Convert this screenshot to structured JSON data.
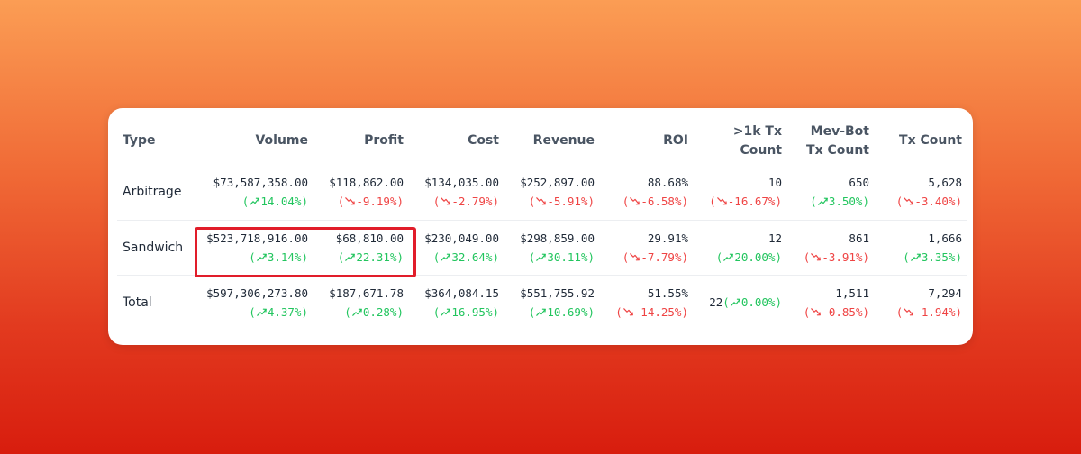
{
  "colors": {
    "up": "#22c55e",
    "down": "#ef4444",
    "highlight": "#e11d2a"
  },
  "headers": {
    "type": "Type",
    "volume": "Volume",
    "profit": "Profit",
    "cost": "Cost",
    "revenue": "Revenue",
    "roi": "ROI",
    "tx1k_line1": ">1k Tx",
    "tx1k_line2": "Count",
    "mevbot_line1": "Mev-Bot",
    "mevbot_line2": "Tx Count",
    "txcount": "Tx Count"
  },
  "rows": [
    {
      "type": "Arbitrage",
      "cells": [
        {
          "key": "volume",
          "value": "$73,587,358.00",
          "change": "14.04%",
          "dir": "up"
        },
        {
          "key": "profit",
          "value": "$118,862.00",
          "change": "-9.19%",
          "dir": "down"
        },
        {
          "key": "cost",
          "value": "$134,035.00",
          "change": "-2.79%",
          "dir": "down"
        },
        {
          "key": "revenue",
          "value": "$252,897.00",
          "change": "-5.91%",
          "dir": "down"
        },
        {
          "key": "roi",
          "value": "88.68%",
          "change": "-6.58%",
          "dir": "down"
        },
        {
          "key": "tx1k",
          "value": "10",
          "change": "-16.67%",
          "dir": "down"
        },
        {
          "key": "mevbot",
          "value": "650",
          "change": "3.50%",
          "dir": "up"
        },
        {
          "key": "txcount",
          "value": "5,628",
          "change": "-3.40%",
          "dir": "down"
        }
      ]
    },
    {
      "type": "Sandwich",
      "cells": [
        {
          "key": "volume",
          "value": "$523,718,916.00",
          "change": "3.14%",
          "dir": "up"
        },
        {
          "key": "profit",
          "value": "$68,810.00",
          "change": "22.31%",
          "dir": "up"
        },
        {
          "key": "cost",
          "value": "$230,049.00",
          "change": "32.64%",
          "dir": "up"
        },
        {
          "key": "revenue",
          "value": "$298,859.00",
          "change": "30.11%",
          "dir": "up"
        },
        {
          "key": "roi",
          "value": "29.91%",
          "change": "-7.79%",
          "dir": "down"
        },
        {
          "key": "tx1k",
          "value": "12",
          "change": "20.00%",
          "dir": "up"
        },
        {
          "key": "mevbot",
          "value": "861",
          "change": "-3.91%",
          "dir": "down"
        },
        {
          "key": "txcount",
          "value": "1,666",
          "change": "3.35%",
          "dir": "up"
        }
      ]
    },
    {
      "type": "Total",
      "cells": [
        {
          "key": "volume",
          "value": "$597,306,273.80",
          "change": "4.37%",
          "dir": "up"
        },
        {
          "key": "profit",
          "value": "$187,671.78",
          "change": "0.28%",
          "dir": "up"
        },
        {
          "key": "cost",
          "value": "$364,084.15",
          "change": "16.95%",
          "dir": "up"
        },
        {
          "key": "revenue",
          "value": "$551,755.92",
          "change": "10.69%",
          "dir": "up"
        },
        {
          "key": "roi",
          "value": "51.55%",
          "change": "-14.25%",
          "dir": "down"
        },
        {
          "key": "tx1k",
          "value": "22",
          "change": "0.00%",
          "dir": "up",
          "inline": true
        },
        {
          "key": "mevbot",
          "value": "1,511",
          "change": "-0.85%",
          "dir": "down"
        },
        {
          "key": "txcount",
          "value": "7,294",
          "change": "-1.94%",
          "dir": "down"
        }
      ]
    }
  ]
}
